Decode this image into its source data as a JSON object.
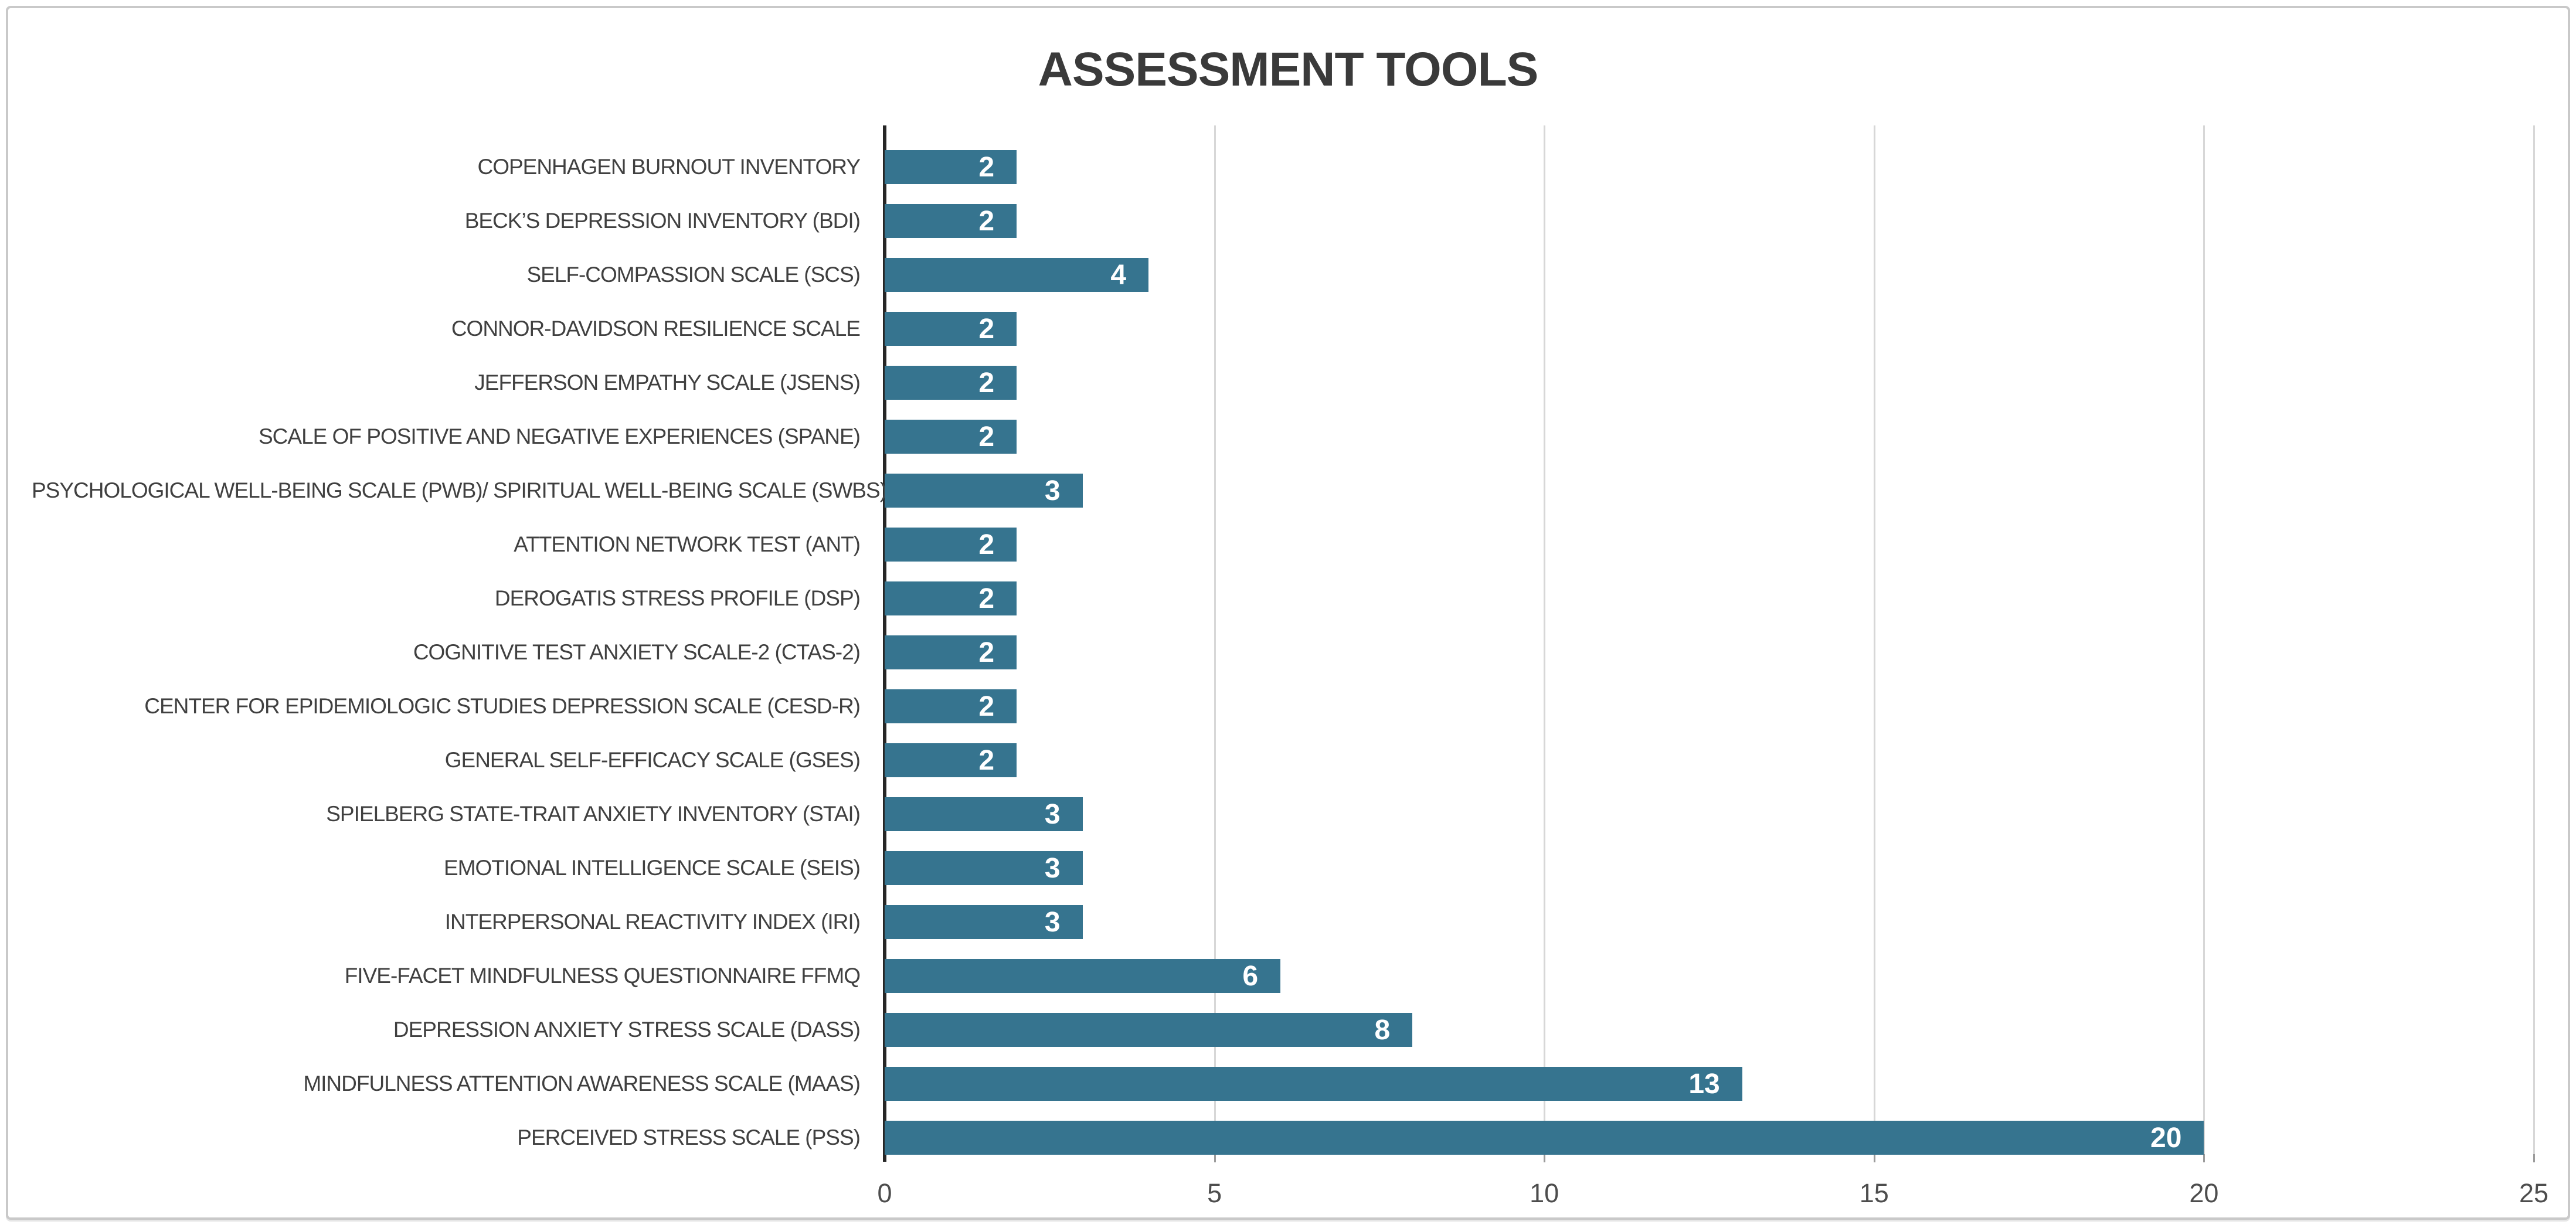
{
  "window": {
    "background_color": "#ffffff",
    "frame_border_color": "#c9c9c9"
  },
  "chart_data": {
    "type": "bar",
    "orientation": "horizontal",
    "title": "ASSESSMENT TOOLS",
    "categories": [
      "COPENHAGEN BURNOUT INVENTORY",
      "BECK’S DEPRESSION INVENTORY (BDI)",
      "SELF-COMPASSION SCALE (SCS)",
      "CONNOR-DAVIDSON RESILIENCE SCALE",
      "JEFFERSON EMPATHY SCALE (JSENS)",
      "SCALE OF POSITIVE AND NEGATIVE EXPERIENCES (SPANE)",
      "PSYCHOLOGICAL WELL-BEING SCALE (PWB)/ SPIRITUAL WELL-BEING SCALE (SWBS)",
      "ATTENTION NETWORK TEST (ANT)",
      "DEROGATIS STRESS PROFILE (DSP)",
      "COGNITIVE TEST ANXIETY SCALE-2 (CTAS-2)",
      "CENTER FOR EPIDEMIOLOGIC STUDIES DEPRESSION SCALE (CESD-R)",
      "GENERAL SELF-EFFICACY SCALE (GSES)",
      "SPIELBERG STATE-TRAIT ANXIETY INVENTORY (STAI)",
      "EMOTIONAL INTELLIGENCE SCALE (SEIS)",
      "INTERPERSONAL REACTIVITY INDEX (IRI)",
      "FIVE-FACET MINDFULNESS QUESTIONNAIRE FFMQ",
      "DEPRESSION ANXIETY STRESS SCALE (DASS)",
      "MINDFULNESS ATTENTION AWARENESS SCALE (MAAS)",
      "PERCEIVED STRESS SCALE (PSS)"
    ],
    "values": [
      2,
      2,
      4,
      2,
      2,
      2,
      3,
      2,
      2,
      2,
      2,
      2,
      3,
      3,
      3,
      6,
      8,
      13,
      20
    ],
    "xlabel": "",
    "ylabel": "",
    "xlim": [
      0,
      25
    ],
    "x_ticks": [
      0,
      5,
      10,
      15,
      20,
      25
    ],
    "grid": "vertical gridlines at each x tick",
    "legend": "none",
    "bar_color": "#36748F",
    "value_label_color": "#ffffff",
    "category_label_color": "#404040",
    "tick_label_color": "#4d4d4d",
    "axis_line_color": "#262626",
    "gridline_color": "#d7d7d7"
  }
}
